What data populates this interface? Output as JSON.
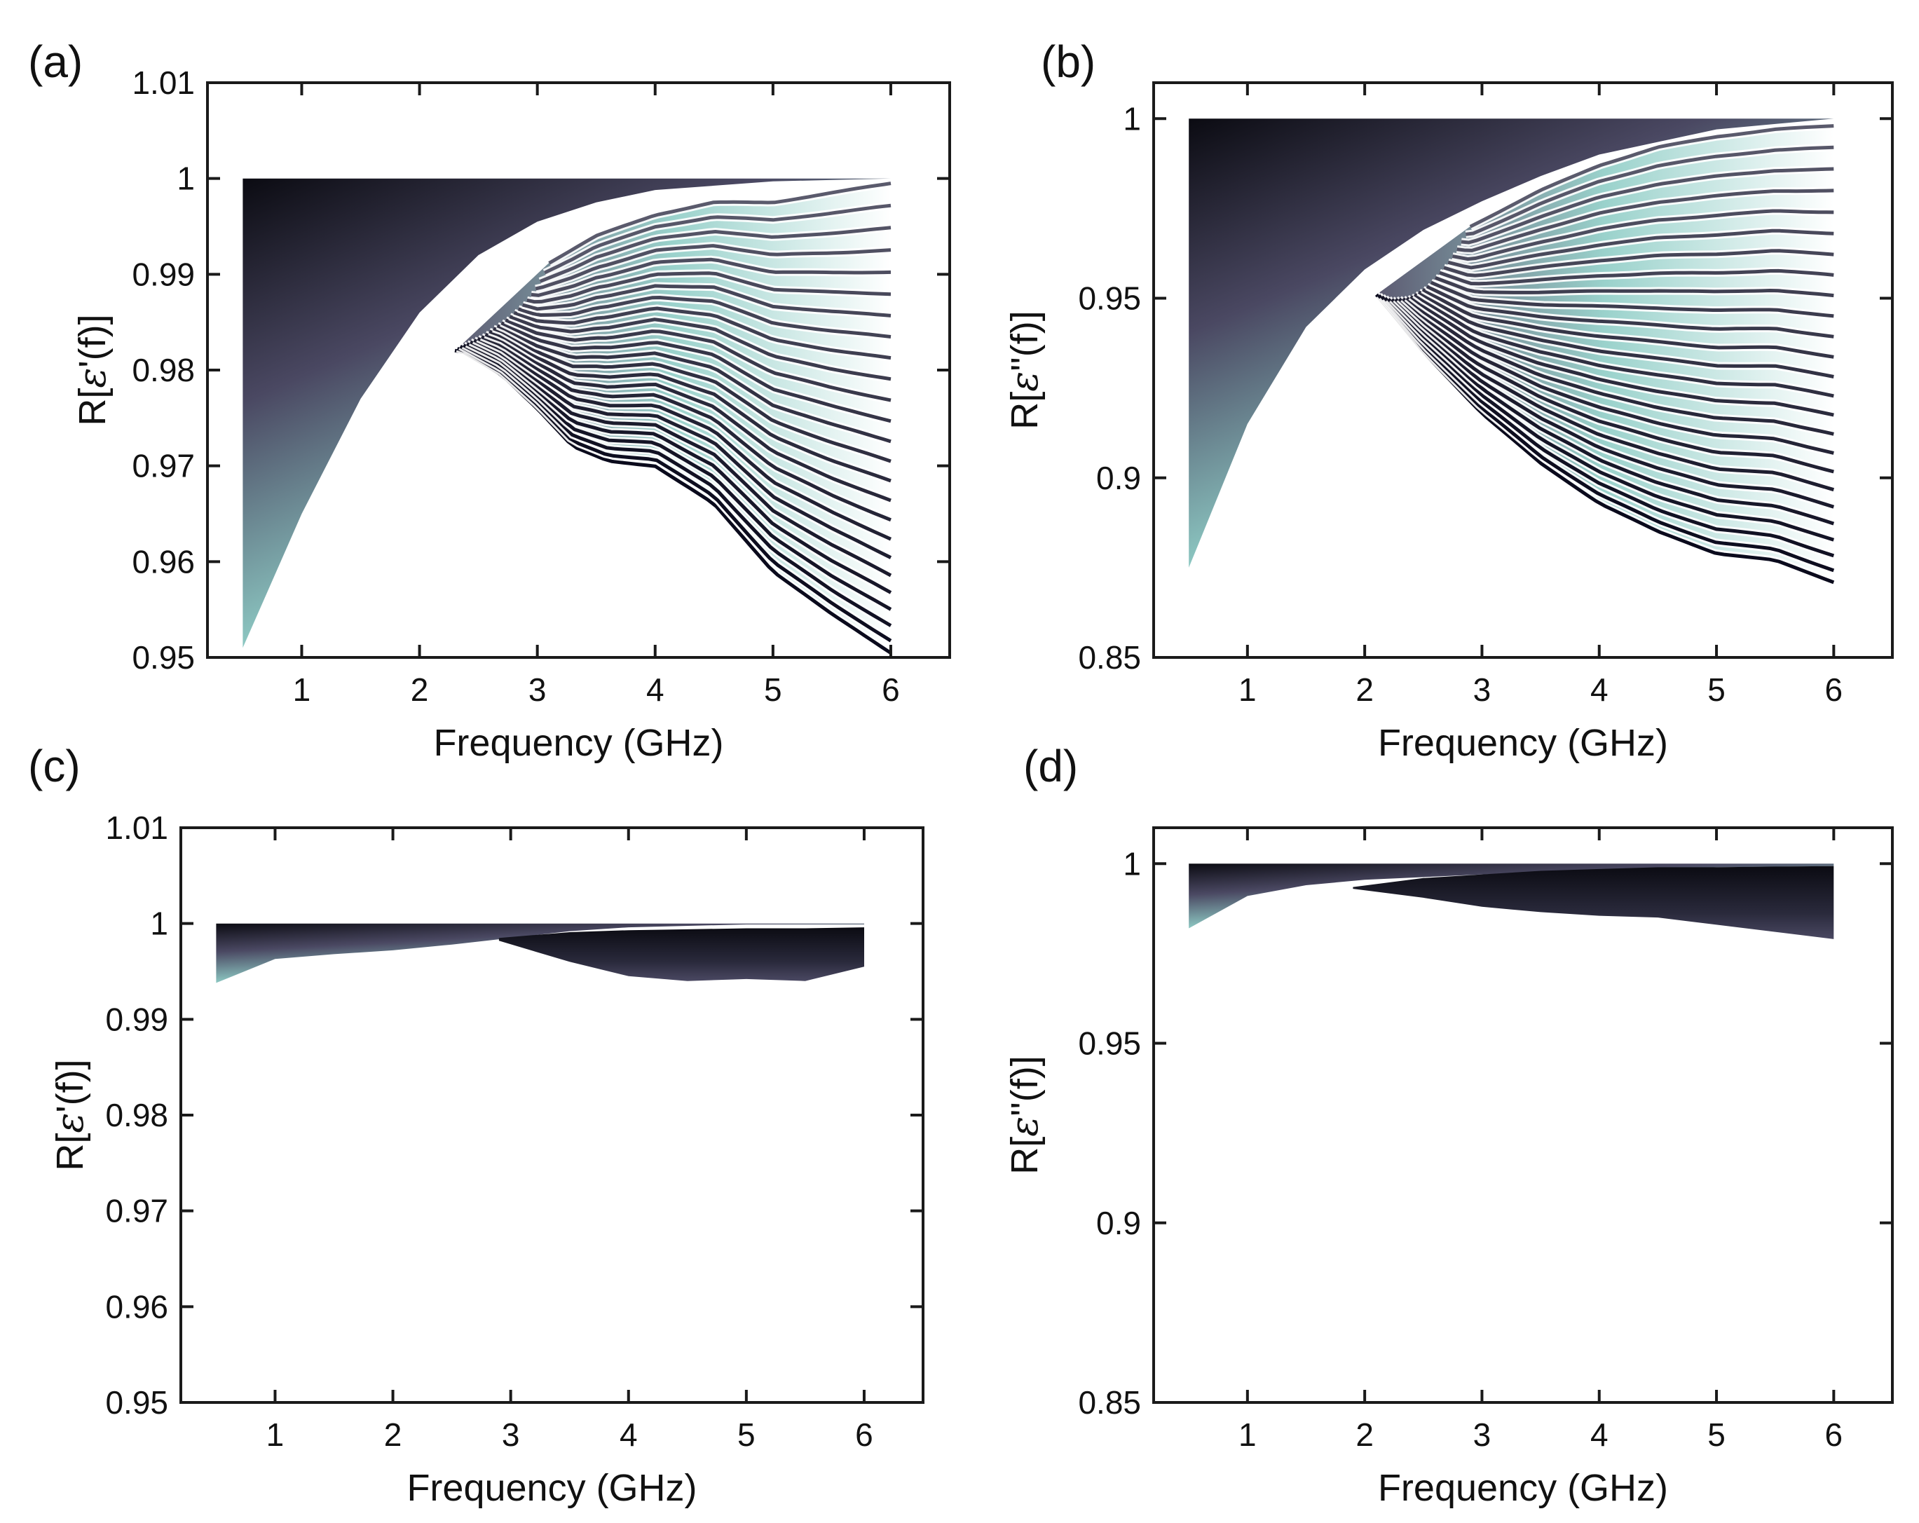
{
  "figure": {
    "colors": {
      "band_dark": "#0b0b12",
      "band_mid": "#4a4862",
      "band_light": "#8fcdc6",
      "axis": "#1a1a1a"
    },
    "panels": [
      {
        "id": "a",
        "label": "(a)",
        "xlabel": "Frequency (GHz)",
        "ylabel_prefix": "R[",
        "ylabel_symbol": "ε",
        "ylabel_suffix": "'(f)]"
      },
      {
        "id": "b",
        "label": "(b)",
        "xlabel": "Frequency (GHz)",
        "ylabel_prefix": "R[",
        "ylabel_symbol": "ε",
        "ylabel_suffix": "''(f)]"
      },
      {
        "id": "c",
        "label": "(c)",
        "xlabel": "Frequency (GHz)",
        "ylabel_prefix": "R[",
        "ylabel_symbol": "ε",
        "ylabel_suffix": "'(f)]"
      },
      {
        "id": "d",
        "label": "(d)",
        "xlabel": "Frequency (GHz)",
        "ylabel_prefix": "R[",
        "ylabel_symbol": "ε",
        "ylabel_suffix": "''(f)]"
      }
    ]
  },
  "chart_data": [
    {
      "panel": "(a)",
      "type": "area",
      "xlabel": "Frequency (GHz)",
      "ylabel": "R[ε'(f)]",
      "xlim": [
        0.2,
        6.5
      ],
      "ylim": [
        0.95,
        1.01
      ],
      "xticks": [
        1,
        2,
        3,
        4,
        5,
        6
      ],
      "xtick_labels": [
        "1",
        "2",
        "3",
        "4",
        "5",
        "6"
      ],
      "yticks": [
        0.95,
        0.96,
        0.97,
        0.98,
        0.99,
        1,
        1.01
      ],
      "ytick_labels": [
        "0.95",
        "0.96",
        "0.97",
        "0.98",
        "0.99",
        "1",
        "1.01"
      ],
      "fan_upper": {
        "x": [
          0.5,
          6
        ],
        "y": [
          1.0,
          1.0
        ]
      },
      "fan_lower": {
        "x": [
          0.5,
          1,
          1.5,
          2,
          2.5,
          3,
          3.5,
          4,
          5,
          6
        ],
        "y": [
          0.951,
          0.965,
          0.977,
          0.986,
          0.992,
          0.9955,
          0.9975,
          0.9988,
          0.9997,
          1.0
        ]
      },
      "band_upper": {
        "x": [
          3,
          3.5,
          4,
          4.5,
          5,
          5.5,
          6
        ],
        "y": [
          0.9905,
          0.994,
          0.9962,
          0.9975,
          0.9975,
          0.9985,
          0.9995
        ]
      },
      "lines_start_x": [
        2.3,
        3.1
      ],
      "lines_end_x": 6,
      "lowest_curve": {
        "x": [
          2.35,
          2.7,
          3,
          3.3,
          3.6,
          4,
          4.5,
          5,
          5.5,
          6
        ],
        "y": [
          0.982,
          0.9795,
          0.976,
          0.972,
          0.9705,
          0.97,
          0.966,
          0.959,
          0.9545,
          0.9505
        ]
      },
      "line_count": 25
    },
    {
      "panel": "(b)",
      "type": "area",
      "xlabel": "Frequency (GHz)",
      "ylabel": "R[ε''(f)]",
      "xlim": [
        0.2,
        6.5
      ],
      "ylim": [
        0.85,
        1.01
      ],
      "xticks": [
        1,
        2,
        3,
        4,
        5,
        6
      ],
      "xtick_labels": [
        "1",
        "2",
        "3",
        "4",
        "5",
        "6"
      ],
      "yticks": [
        0.85,
        0.9,
        0.95,
        1
      ],
      "ytick_labels": [
        "0.85",
        "0.9",
        "0.95",
        "1"
      ],
      "fan_upper": {
        "x": [
          0.5,
          6
        ],
        "y": [
          1.0,
          1.0
        ]
      },
      "fan_lower": {
        "x": [
          0.5,
          1,
          1.5,
          2,
          2.5,
          3,
          3.5,
          4,
          5,
          6
        ],
        "y": [
          0.875,
          0.915,
          0.942,
          0.958,
          0.969,
          0.977,
          0.984,
          0.99,
          0.997,
          1.0
        ]
      },
      "band_upper": {
        "x": [
          2.9,
          3.5,
          4,
          4.5,
          5,
          5.5,
          6
        ],
        "y": [
          0.97,
          0.98,
          0.987,
          0.992,
          0.995,
          0.997,
          0.998
        ]
      },
      "lines_start_x": [
        2.1,
        2.9
      ],
      "lines_end_x": 6,
      "lowest_curve": {
        "x": [
          2.1,
          2.5,
          3,
          3.5,
          4,
          4.5,
          5,
          5.5,
          6
        ],
        "y": [
          0.951,
          0.935,
          0.918,
          0.904,
          0.893,
          0.885,
          0.879,
          0.877,
          0.871
        ]
      },
      "line_count": 25
    },
    {
      "panel": "(c)",
      "type": "area",
      "xlabel": "Frequency (GHz)",
      "ylabel": "R[ε'(f)]",
      "xlim": [
        0.2,
        6.5
      ],
      "ylim": [
        0.95,
        1.01
      ],
      "xticks": [
        1,
        2,
        3,
        4,
        5,
        6
      ],
      "xtick_labels": [
        "1",
        "2",
        "3",
        "4",
        "5",
        "6"
      ],
      "yticks": [
        0.95,
        0.96,
        0.97,
        0.98,
        0.99,
        1,
        1.01
      ],
      "ytick_labels": [
        "0.95",
        "0.96",
        "0.97",
        "0.98",
        "0.99",
        "1",
        "1.01"
      ],
      "fan_upper": {
        "x": [
          0.5,
          6
        ],
        "y": [
          1.0,
          1.0
        ]
      },
      "fan_lower": {
        "x": [
          0.5,
          1,
          1.5,
          2,
          2.5,
          3,
          3.5,
          4,
          5,
          6
        ],
        "y": [
          0.9938,
          0.9963,
          0.9968,
          0.9972,
          0.9978,
          0.9985,
          0.9992,
          0.9996,
          0.9999,
          0.9999
        ]
      },
      "dark_band": {
        "x": [
          2.9,
          3.5,
          4,
          4.5,
          5,
          5.5,
          6
        ],
        "upper": [
          0.9985,
          0.9991,
          0.9993,
          0.9994,
          0.9995,
          0.9995,
          0.9996
        ],
        "lower": [
          0.9982,
          0.996,
          0.9945,
          0.994,
          0.9942,
          0.994,
          0.9955
        ]
      }
    },
    {
      "panel": "(d)",
      "type": "area",
      "xlabel": "Frequency (GHz)",
      "ylabel": "R[ε''(f)]",
      "xlim": [
        0.2,
        6.5
      ],
      "ylim": [
        0.85,
        1.01
      ],
      "xticks": [
        1,
        2,
        3,
        4,
        5,
        6
      ],
      "xtick_labels": [
        "1",
        "2",
        "3",
        "4",
        "5",
        "6"
      ],
      "yticks": [
        0.85,
        0.9,
        0.95,
        1
      ],
      "ytick_labels": [
        "0.85",
        "0.9",
        "0.95",
        "1"
      ],
      "fan_upper": {
        "x": [
          0.5,
          6
        ],
        "y": [
          1.0,
          1.0
        ]
      },
      "fan_lower": {
        "x": [
          0.5,
          1,
          1.5,
          2,
          3,
          4,
          5,
          6
        ],
        "y": [
          0.982,
          0.991,
          0.994,
          0.9955,
          0.997,
          0.998,
          0.999,
          0.9993
        ]
      },
      "dark_band": {
        "x": [
          1.9,
          2.5,
          3,
          3.5,
          4,
          4.5,
          5,
          5.5,
          6
        ],
        "upper": [
          0.9935,
          0.996,
          0.997,
          0.998,
          0.9985,
          0.999,
          0.999,
          0.9992,
          0.9993
        ],
        "lower": [
          0.993,
          0.9905,
          0.988,
          0.9865,
          0.9855,
          0.985,
          0.983,
          0.981,
          0.979
        ]
      }
    }
  ]
}
